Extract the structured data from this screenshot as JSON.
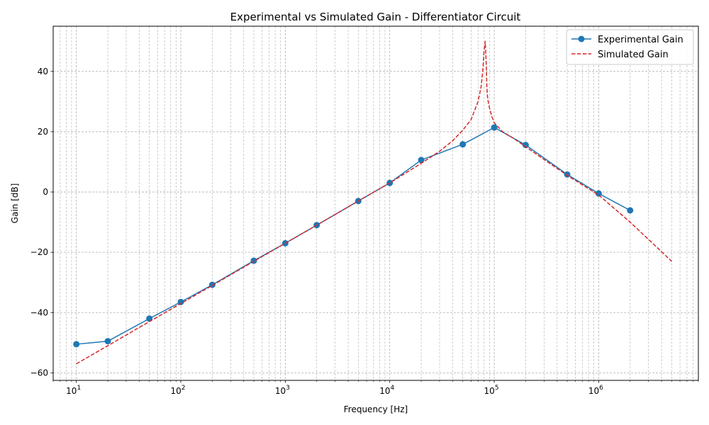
{
  "chart_data": {
    "type": "line",
    "title": "Experimental vs Simulated Gain - Differentiator Circuit",
    "xlabel": "Frequency [Hz]",
    "ylabel": "Gain [dB]",
    "xscale": "log",
    "xlim": [
      6,
      9000000
    ],
    "ylim": [
      -62.5,
      55
    ],
    "grid": true,
    "grid_minor": true,
    "legend_position": "top-right",
    "x_ticks": [
      {
        "value": 10,
        "base": "10",
        "exp": "1"
      },
      {
        "value": 100,
        "base": "10",
        "exp": "2"
      },
      {
        "value": 1000,
        "base": "10",
        "exp": "3"
      },
      {
        "value": 10000,
        "base": "10",
        "exp": "4"
      },
      {
        "value": 100000,
        "base": "10",
        "exp": "5"
      },
      {
        "value": 1000000,
        "base": "10",
        "exp": "6"
      }
    ],
    "y_ticks": [
      {
        "value": -60,
        "label": "−60"
      },
      {
        "value": -40,
        "label": "−40"
      },
      {
        "value": -20,
        "label": "−20"
      },
      {
        "value": 0,
        "label": "0"
      },
      {
        "value": 20,
        "label": "20"
      },
      {
        "value": 40,
        "label": "40"
      }
    ],
    "series": [
      {
        "name": "Experimental Gain",
        "color": "#1f77b4",
        "style": "solid-with-markers",
        "x": [
          10,
          20,
          50,
          100,
          200,
          500,
          1000,
          2000,
          5000,
          10000,
          20000,
          50000,
          100000,
          200000,
          500000,
          1000000,
          2000000
        ],
        "y": [
          -50.5,
          -49.5,
          -42,
          -36.5,
          -30.8,
          -22.8,
          -17,
          -11,
          -3,
          3,
          10.6,
          15.8,
          21.4,
          15.6,
          5.8,
          -0.5,
          -6.1
        ]
      },
      {
        "name": "Simulated Gain",
        "color": "#d62728",
        "style": "dashed",
        "x": [
          10,
          20,
          50,
          100,
          200,
          500,
          1000,
          2000,
          5000,
          10000,
          20000,
          30000,
          40000,
          50000,
          60000,
          70000,
          75000,
          78000,
          80000,
          82000,
          84000,
          85000,
          86000,
          88000,
          90000,
          95000,
          100000,
          120000,
          150000,
          200000,
          500000,
          1000000,
          2000000,
          5000000
        ],
        "y": [
          -57,
          -51,
          -43,
          -37,
          -31,
          -23,
          -17,
          -11,
          -3,
          3,
          9.5,
          13.5,
          17,
          20.5,
          24,
          30,
          35,
          41,
          47,
          50,
          42,
          35,
          32,
          29.5,
          28,
          25,
          23,
          20,
          18,
          15,
          5.5,
          -1,
          -10,
          -23
        ]
      }
    ]
  }
}
